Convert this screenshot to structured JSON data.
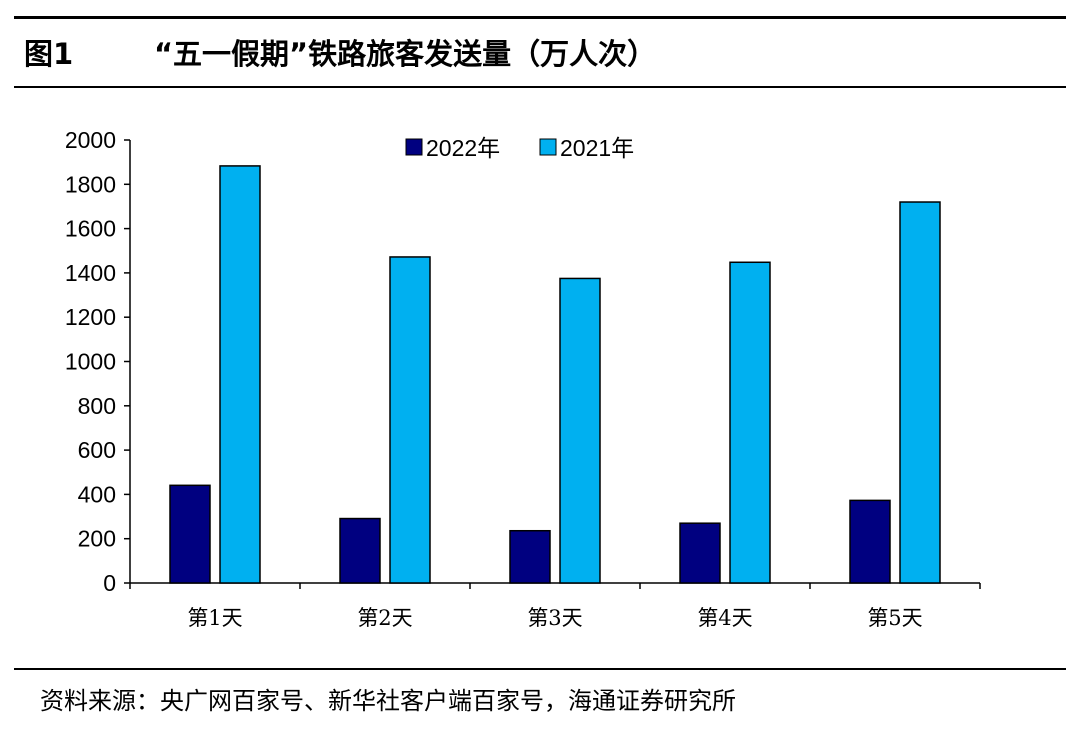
{
  "figure": {
    "number": "图1",
    "title": "“五一假期”铁路旅客发送量（万人次）"
  },
  "source_note": "资料来源：央广网百家号、新华社客户端百家号，海通证券研究所",
  "chart_data": {
    "type": "bar",
    "categories": [
      "第1天",
      "第2天",
      "第3天",
      "第4天",
      "第5天"
    ],
    "series": [
      {
        "name": "2022年",
        "values": [
          441,
          291,
          236,
          270,
          373
        ],
        "color": "#000080"
      },
      {
        "name": "2021年",
        "values": [
          1883,
          1472,
          1375,
          1448,
          1720
        ],
        "color": "#00B0F0"
      }
    ],
    "ylim": [
      0,
      2000
    ],
    "yticks": [
      0,
      200,
      400,
      600,
      800,
      1000,
      1200,
      1400,
      1600,
      1800,
      2000
    ],
    "grid": false,
    "legend_position": "top-center",
    "title": "",
    "xlabel": "",
    "ylabel": ""
  }
}
